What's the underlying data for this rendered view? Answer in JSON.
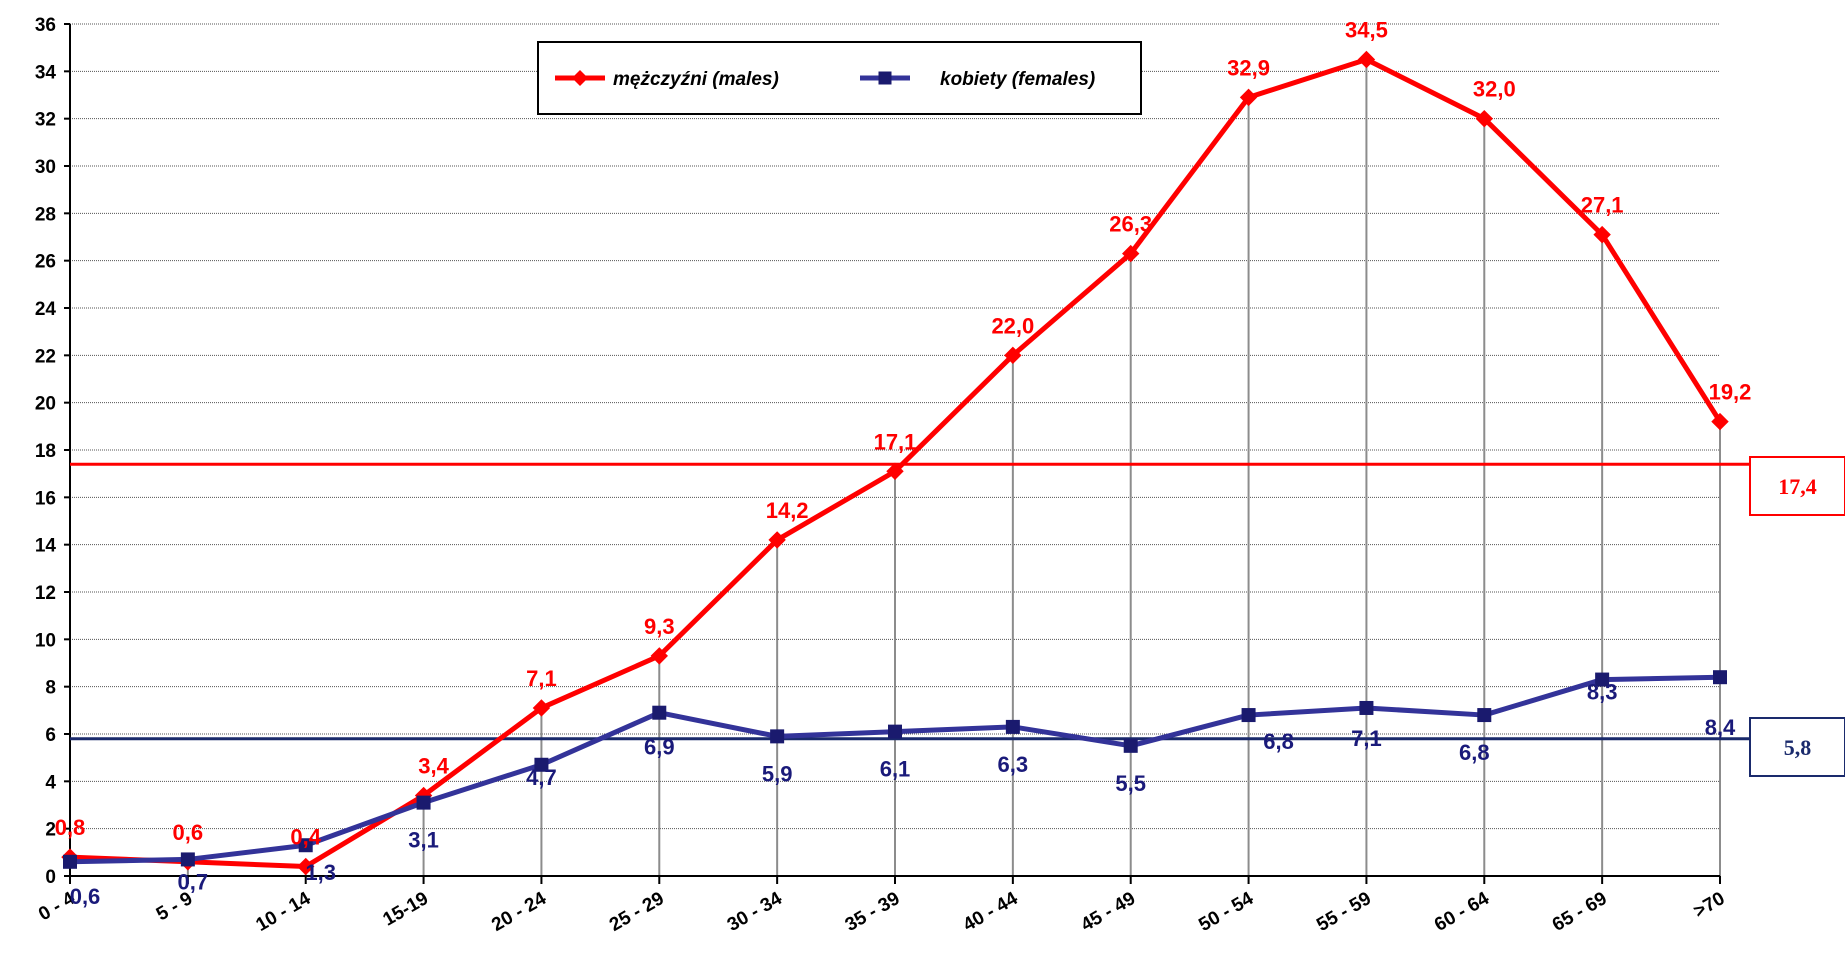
{
  "chart_data": {
    "type": "line",
    "categories": [
      "0 - 4",
      "5 - 9",
      "10 - 14",
      "15-19",
      "20 - 24",
      "25 - 29",
      "30 - 34",
      "35 - 39",
      "40 - 44",
      "45 - 49",
      "50 - 54",
      "55 - 59",
      "60 - 64",
      "65 - 69",
      ">70"
    ],
    "series": [
      {
        "name": "mężczyźni (males)",
        "color": "#ff0000",
        "marker": "diamond",
        "values": [
          0.8,
          0.6,
          0.4,
          3.4,
          7.1,
          9.3,
          14.2,
          17.1,
          22.0,
          26.3,
          32.9,
          34.5,
          32.0,
          27.1,
          19.2
        ],
        "labels": [
          "0,8",
          "0,6",
          "0,4",
          "3,4",
          "7,1",
          "9,3",
          "14,2",
          "17,1",
          "22,0",
          "26,3",
          "32,9",
          "34,5",
          "32,0",
          "27,1",
          "19,2"
        ]
      },
      {
        "name": "kobiety (females)",
        "color": "#333399",
        "label_color": "#1a1a7a",
        "marker": "square",
        "values": [
          0.6,
          0.7,
          1.3,
          3.1,
          4.7,
          6.9,
          5.9,
          6.1,
          6.3,
          5.5,
          6.8,
          7.1,
          6.8,
          8.3,
          8.4
        ],
        "labels": [
          "0,6",
          "0,7",
          "1,3",
          "3,1",
          "4,7",
          "6,9",
          "5,9",
          "6,1",
          "6,3",
          "5,5",
          "6,8",
          "7,1",
          "6,8",
          "8,3",
          "8,4"
        ]
      }
    ],
    "reference_lines": [
      {
        "value": 17.4,
        "label": "17,4",
        "color": "#ff0000"
      },
      {
        "value": 5.8,
        "label": "5,8",
        "color": "#1a2a6c"
      }
    ],
    "ylim": [
      0,
      36
    ],
    "yticks": [
      0,
      2,
      4,
      6,
      8,
      10,
      12,
      14,
      16,
      18,
      20,
      22,
      24,
      26,
      28,
      30,
      32,
      34,
      36
    ],
    "title": "",
    "xlabel": "",
    "ylabel": "",
    "grid": "horizontal dotted lines, vertical drop lines at categories",
    "legend_position": "top-center"
  }
}
